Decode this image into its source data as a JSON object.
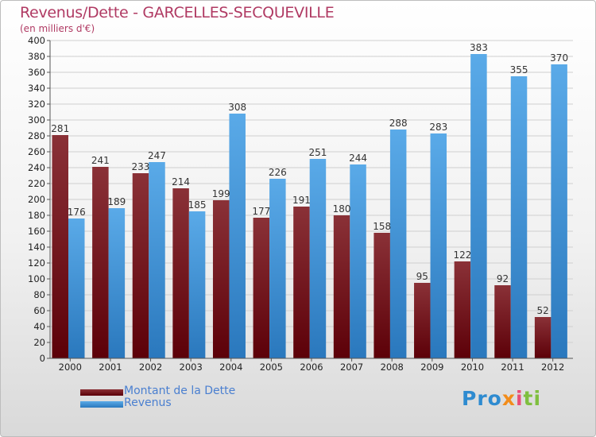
{
  "title": "Revenus/Dette - GARCELLES-SECQUEVILLE",
  "subtitle": "(en milliers d'€)",
  "legend": {
    "debt_label": "Montant de la Dette",
    "revenue_label": "Revenus"
  },
  "logo": {
    "p1": "Pro",
    "p2": "x",
    "p3": "i",
    "p4": "ti"
  },
  "colors": {
    "debt_light": "#8a3137",
    "debt_dark": "#5c0008",
    "revenue_light": "#5aaae8",
    "revenue_dark": "#2a78bd",
    "grid": "#cfcfcf"
  },
  "chart_data": {
    "type": "bar",
    "categories": [
      "2000",
      "2001",
      "2002",
      "2003",
      "2004",
      "2005",
      "2006",
      "2007",
      "2008",
      "2009",
      "2010",
      "2011",
      "2012"
    ],
    "series": [
      {
        "name": "Montant de la Dette",
        "values": [
          281,
          241,
          233,
          214,
          199,
          177,
          191,
          180,
          158,
          95,
          122,
          92,
          52
        ]
      },
      {
        "name": "Revenus",
        "values": [
          176,
          189,
          247,
          185,
          308,
          226,
          251,
          244,
          288,
          283,
          383,
          355,
          370
        ]
      }
    ],
    "ylim": [
      0,
      400
    ],
    "yticks": [
      0,
      20,
      40,
      60,
      80,
      100,
      120,
      140,
      160,
      180,
      200,
      220,
      240,
      260,
      280,
      300,
      320,
      340,
      360,
      380,
      400
    ],
    "grid": true,
    "legend_position": "bottom-left"
  }
}
